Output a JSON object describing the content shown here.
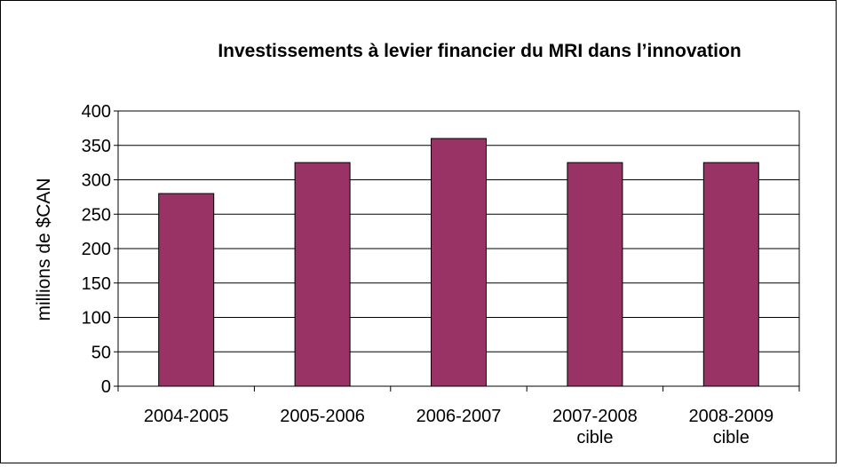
{
  "chart_data": {
    "type": "bar",
    "title": "Investissements à levier financier du MRI dans l’innovation",
    "y_label": "millions de $CAN",
    "categories": [
      "2004-2005",
      "2005-2006",
      "2006-2007",
      "2007-2008 cible",
      "2008-2009 cible"
    ],
    "values": [
      280,
      325,
      360,
      325,
      325
    ],
    "color": "#993366",
    "ylim": [
      0,
      400
    ],
    "yticks": [
      0,
      50,
      100,
      150,
      200,
      250,
      300,
      350,
      400
    ],
    "grid": true
  }
}
